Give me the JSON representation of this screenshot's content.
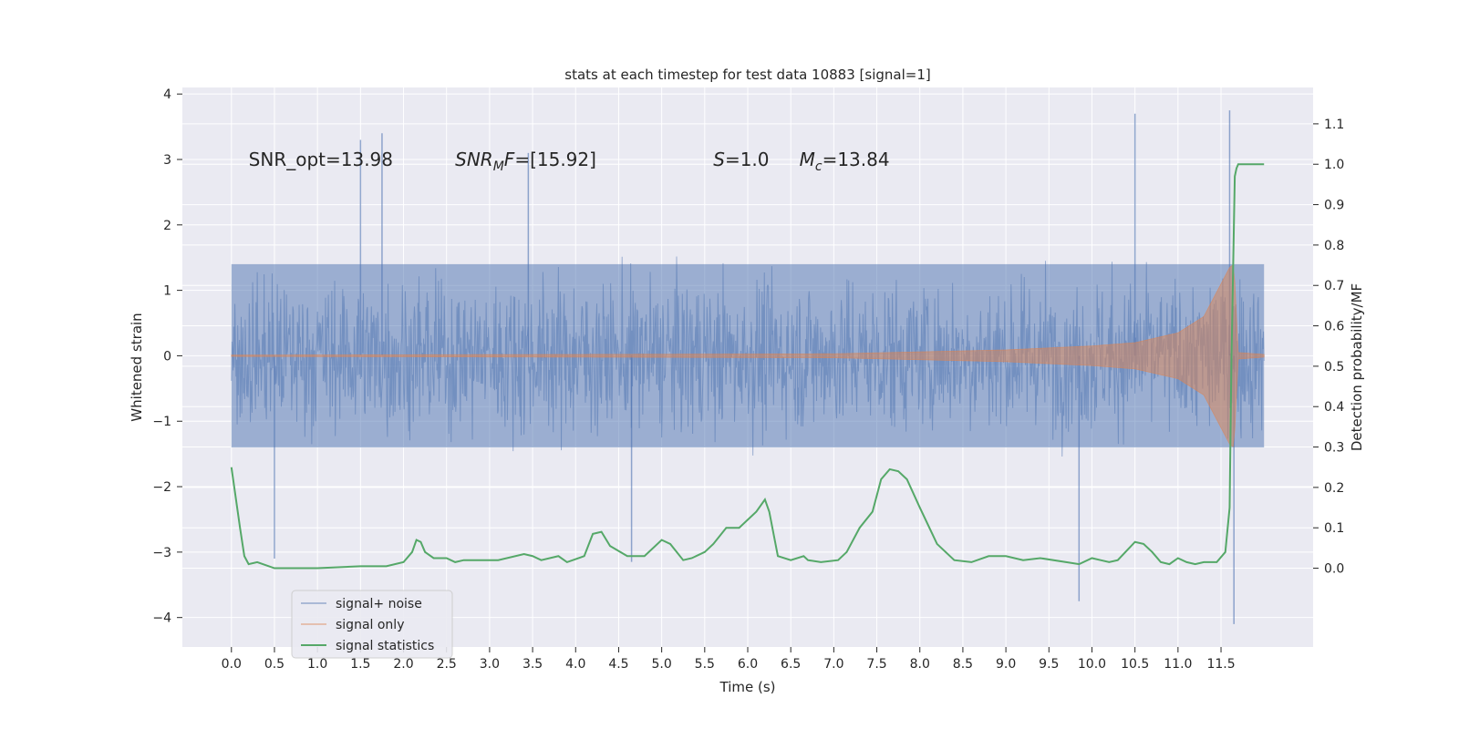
{
  "chart_data": {
    "type": "line",
    "title": "stats at each timestep for test data 10883 [signal=1]",
    "xlabel": "Time (s)",
    "ylabel_left": "Whitened strain",
    "ylabel_right": "Detection probability/MF",
    "xlim": [
      -0.57,
      12.57
    ],
    "ylim_left": [
      -4.45,
      4.1
    ],
    "ylim_right": [
      -0.195,
      1.19
    ],
    "x_ticks": [
      "0.0",
      "0.5",
      "1.0",
      "1.5",
      "2.0",
      "2.5",
      "3.0",
      "3.5",
      "4.0",
      "4.5",
      "5.0",
      "5.5",
      "6.0",
      "6.5",
      "7.0",
      "7.5",
      "8.0",
      "8.5",
      "9.0",
      "9.5",
      "10.0",
      "10.5",
      "11.0",
      "11.5"
    ],
    "y_ticks_left": [
      "−4",
      "−3",
      "−2",
      "−1",
      "0",
      "1",
      "2",
      "3",
      "4"
    ],
    "y_ticks_right": [
      "0.0",
      "0.1",
      "0.2",
      "0.3",
      "0.4",
      "0.5",
      "0.6",
      "0.7",
      "0.8",
      "0.9",
      "1.0",
      "1.1"
    ],
    "grid": true,
    "legend_position": "bottom-left",
    "colors": {
      "signal_noise": "#4c72b0",
      "signal_only": "#dd8452",
      "signal_statistics": "#55a868",
      "background": "#eaeaf2",
      "grid": "#ffffff"
    },
    "annotations": [
      {
        "text": "SNR_opt=13.98",
        "x": 0.2,
        "y": 3.0
      },
      {
        "text": "SNR_MF=[15.92]",
        "x": 2.6,
        "y": 3.0
      },
      {
        "text": "S=1.0",
        "x": 5.6,
        "y": 3.0
      },
      {
        "text": "M_c=13.84",
        "x": 6.6,
        "y": 3.0
      }
    ],
    "series": [
      {
        "name": "signal+ noise",
        "axis": "left",
        "t_start": 0.0,
        "t_end": 12.0,
        "core_amplitude": 1.4,
        "peak_samples": [
          [
            1.5,
            3.3
          ],
          [
            1.75,
            3.4
          ],
          [
            3.45,
            3.1
          ],
          [
            10.5,
            3.7
          ],
          [
            11.6,
            3.75
          ],
          [
            11.65,
            -4.1
          ],
          [
            9.85,
            -3.75
          ],
          [
            0.5,
            -3.1
          ],
          [
            4.65,
            -3.15
          ]
        ]
      },
      {
        "name": "signal only",
        "axis": "left",
        "t_start": 0.0,
        "t_end": 12.0,
        "merger_time": 11.65,
        "envelope": [
          [
            0.0,
            0.01
          ],
          [
            4.0,
            0.02
          ],
          [
            7.0,
            0.03
          ],
          [
            8.0,
            0.06
          ],
          [
            9.0,
            0.09
          ],
          [
            10.0,
            0.15
          ],
          [
            10.5,
            0.2
          ],
          [
            11.0,
            0.35
          ],
          [
            11.3,
            0.6
          ],
          [
            11.5,
            1.1
          ],
          [
            11.6,
            1.35
          ],
          [
            11.65,
            1.4
          ],
          [
            11.7,
            0.05
          ],
          [
            12.0,
            0.02
          ]
        ]
      },
      {
        "name": "signal statistics",
        "axis": "right",
        "x": [
          0.0,
          0.1,
          0.15,
          0.2,
          0.3,
          0.5,
          1.0,
          1.5,
          1.8,
          2.0,
          2.1,
          2.15,
          2.2,
          2.25,
          2.35,
          2.5,
          2.6,
          2.7,
          2.9,
          3.1,
          3.4,
          3.5,
          3.6,
          3.8,
          3.9,
          4.1,
          4.2,
          4.3,
          4.4,
          4.6,
          4.8,
          5.0,
          5.1,
          5.25,
          5.35,
          5.5,
          5.6,
          5.75,
          5.9,
          6.1,
          6.2,
          6.25,
          6.35,
          6.5,
          6.65,
          6.7,
          6.85,
          7.05,
          7.15,
          7.3,
          7.45,
          7.55,
          7.65,
          7.75,
          7.85,
          8.0,
          8.2,
          8.4,
          8.6,
          8.8,
          9.0,
          9.2,
          9.4,
          9.7,
          9.85,
          10.0,
          10.1,
          10.2,
          10.3,
          10.5,
          10.6,
          10.7,
          10.8,
          10.9,
          11.0,
          11.1,
          11.2,
          11.3,
          11.45,
          11.55,
          11.6,
          11.62,
          11.66,
          11.68,
          11.7,
          11.75,
          11.8,
          12.0
        ],
        "y": [
          0.25,
          0.1,
          0.03,
          0.01,
          0.015,
          0.0,
          0.0,
          0.005,
          0.005,
          0.015,
          0.04,
          0.07,
          0.065,
          0.04,
          0.025,
          0.025,
          0.015,
          0.02,
          0.02,
          0.02,
          0.035,
          0.03,
          0.02,
          0.03,
          0.015,
          0.03,
          0.085,
          0.09,
          0.055,
          0.03,
          0.03,
          0.07,
          0.06,
          0.02,
          0.025,
          0.04,
          0.06,
          0.1,
          0.1,
          0.14,
          0.17,
          0.14,
          0.03,
          0.02,
          0.03,
          0.02,
          0.015,
          0.02,
          0.04,
          0.1,
          0.14,
          0.22,
          0.245,
          0.24,
          0.22,
          0.15,
          0.06,
          0.02,
          0.015,
          0.03,
          0.03,
          0.02,
          0.025,
          0.015,
          0.01,
          0.025,
          0.02,
          0.015,
          0.02,
          0.065,
          0.06,
          0.04,
          0.015,
          0.01,
          0.025,
          0.015,
          0.01,
          0.015,
          0.015,
          0.04,
          0.15,
          0.5,
          0.97,
          0.99,
          1.0,
          1.0,
          1.0,
          1.0
        ]
      }
    ]
  }
}
